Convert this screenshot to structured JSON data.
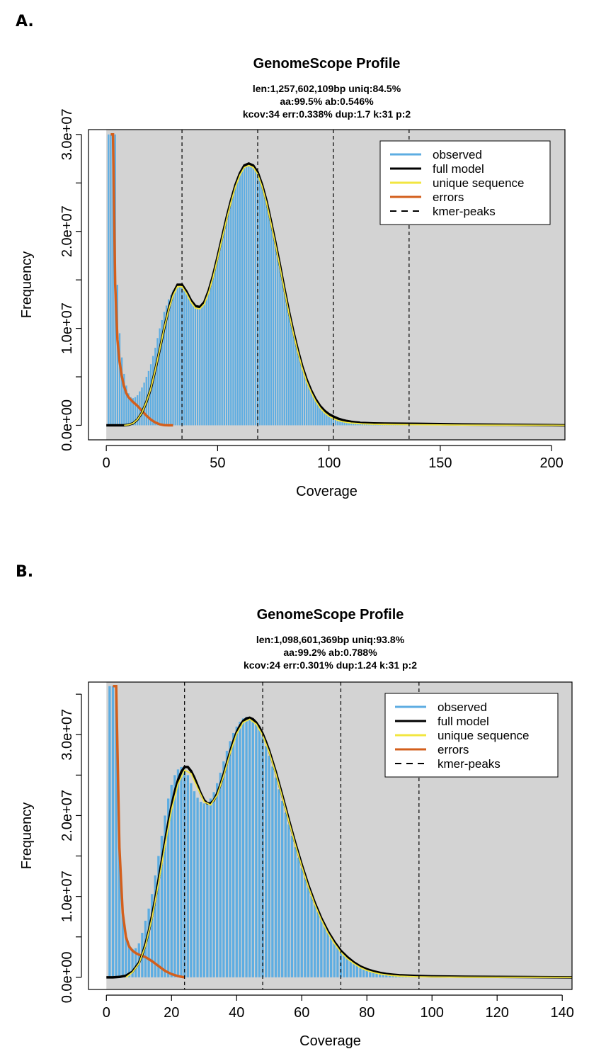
{
  "panels": {
    "a_label": "A.",
    "b_label": "B."
  },
  "chart_data": [
    {
      "type": "line",
      "title": "GenomeScope Profile",
      "subtitle_lines": [
        "len:1,257,602,109bp uniq:84.5%",
        "aa:99.5% ab:0.546%",
        "kcov:34 err:0.338%  dup:1.7  k:31 p:2"
      ],
      "xlabel": "Coverage",
      "ylabel": "Frequency",
      "xlim": [
        -8,
        206
      ],
      "ylim": [
        -1500000,
        30500000
      ],
      "xticks": [
        0,
        50,
        100,
        150,
        200
      ],
      "xtick_labels": [
        "0",
        "50",
        "100",
        "150",
        "200"
      ],
      "yticks": [
        0,
        5000000,
        10000000,
        15000000,
        20000000,
        25000000,
        30000000
      ],
      "ytick_labels": [
        "0.0e+00",
        "",
        "1.0e+07",
        "",
        "2.0e+07",
        "",
        "3.0e+07"
      ],
      "kmer_peaks": [
        34,
        68,
        102,
        136
      ],
      "observed": {
        "x": [
          1,
          2,
          3,
          4,
          5,
          6,
          7,
          8,
          9,
          10,
          11,
          12,
          13,
          14,
          15,
          16,
          17,
          18,
          19,
          20,
          22,
          24,
          26,
          28,
          30,
          32,
          34,
          36,
          38,
          40,
          42,
          44,
          46,
          48,
          50,
          52,
          54,
          56,
          58,
          60,
          62,
          64,
          66,
          68,
          70,
          72,
          74,
          76,
          78,
          80,
          82,
          84,
          86,
          88,
          90,
          92,
          94,
          96,
          98,
          100,
          102,
          104,
          106,
          108,
          110,
          112,
          114,
          116,
          118,
          120,
          125,
          130,
          140,
          150,
          160,
          180,
          200
        ],
        "values": [
          30000000,
          30000000,
          30000000,
          30000000,
          14500000,
          9500000,
          7000000,
          5300000,
          4100000,
          3300000,
          2900000,
          2800000,
          2900000,
          3100000,
          3500000,
          3900000,
          4400000,
          5000000,
          5600000,
          6300000,
          8000000,
          10000000,
          11700000,
          13000000,
          13900000,
          14300000,
          14200000,
          13600000,
          12800000,
          12300000,
          12200000,
          12800000,
          14000000,
          15600000,
          17500000,
          19500000,
          21400000,
          23200000,
          24800000,
          26000000,
          26800000,
          27000000,
          26800000,
          26000000,
          24700000,
          23000000,
          21000000,
          18800000,
          16500000,
          14100000,
          11800000,
          9700000,
          7800000,
          6100000,
          4700000,
          3600000,
          2700000,
          2000000,
          1500000,
          1150000,
          900000,
          700000,
          550000,
          430000,
          350000,
          300000,
          260000,
          230000,
          210000,
          200000,
          180000,
          170000,
          150000,
          120000,
          90000,
          50000,
          20000
        ]
      },
      "full_model": {
        "x": [
          0,
          2,
          4,
          6,
          8,
          10,
          12,
          14,
          16,
          18,
          20,
          22,
          24,
          26,
          28,
          30,
          32,
          34,
          36,
          38,
          40,
          42,
          44,
          46,
          48,
          50,
          52,
          54,
          56,
          58,
          60,
          62,
          64,
          66,
          68,
          70,
          72,
          74,
          76,
          78,
          80,
          82,
          84,
          86,
          88,
          90,
          92,
          94,
          96,
          98,
          100,
          102,
          104,
          106,
          108,
          110,
          112,
          114,
          116,
          118,
          120,
          125,
          130,
          140,
          150,
          160,
          180,
          200,
          206
        ],
        "values": [
          0,
          0,
          0,
          0,
          0,
          50000,
          200000,
          600000,
          1300000,
          2400000,
          3800000,
          5700000,
          7800000,
          10000000,
          12000000,
          13600000,
          14500000,
          14500000,
          13800000,
          12900000,
          12300000,
          12200000,
          12700000,
          13900000,
          15500000,
          17400000,
          19400000,
          21400000,
          23200000,
          24800000,
          26000000,
          26800000,
          27000000,
          26800000,
          26100000,
          24800000,
          23100000,
          21000000,
          18800000,
          16500000,
          14100000,
          11800000,
          9700000,
          7800000,
          6100000,
          4700000,
          3600000,
          2700000,
          2000000,
          1500000,
          1150000,
          900000,
          700000,
          550000,
          440000,
          360000,
          310000,
          270000,
          240000,
          220000,
          200000,
          180000,
          170000,
          150000,
          120000,
          90000,
          50000,
          20000,
          0
        ]
      },
      "unique_sequence": {
        "x": [
          8,
          10,
          12,
          14,
          16,
          18,
          20,
          22,
          24,
          26,
          28,
          30,
          32,
          34,
          36,
          38,
          40,
          42,
          44,
          46,
          48,
          50,
          52,
          54,
          56,
          58,
          60,
          62,
          64,
          66,
          68,
          70,
          72,
          74,
          76,
          78,
          80,
          82,
          84,
          86,
          88,
          90,
          92,
          94,
          96,
          98,
          100,
          102,
          104,
          106,
          108,
          110,
          115,
          120,
          125,
          130,
          140,
          150,
          160,
          180,
          200,
          206
        ],
        "values": [
          0,
          50000,
          200000,
          600000,
          1300000,
          2400000,
          3800000,
          5700000,
          7800000,
          10000000,
          11900000,
          13400000,
          14300000,
          14300000,
          13600000,
          12700000,
          12100000,
          12000000,
          12500000,
          13700000,
          15300000,
          17200000,
          19200000,
          21200000,
          23000000,
          24600000,
          25800000,
          26600000,
          26800000,
          26600000,
          25900000,
          24600000,
          22900000,
          20800000,
          18600000,
          16300000,
          13900000,
          11600000,
          9500000,
          7600000,
          5900000,
          4500000,
          3400000,
          2500000,
          1800000,
          1300000,
          950000,
          700000,
          500000,
          380000,
          290000,
          230000,
          150000,
          110000,
          90000,
          80000,
          60000,
          40000,
          30000,
          15000,
          5000,
          0
        ]
      },
      "errors": {
        "x": [
          2,
          3,
          4,
          5,
          6,
          7,
          8,
          9,
          10,
          12,
          14,
          16,
          18,
          20,
          22,
          24,
          26,
          28,
          30
        ],
        "values": [
          30000000,
          30000000,
          14500000,
          8800000,
          6500000,
          5000000,
          4000000,
          3300000,
          2900000,
          2400000,
          2000000,
          1500000,
          1000000,
          600000,
          300000,
          100000,
          20000,
          0,
          0
        ]
      },
      "legend": [
        "observed",
        "full model",
        "unique sequence",
        "errors",
        "kmer-peaks"
      ],
      "colors": {
        "observed": "#5dade2",
        "full_model": "#000000",
        "unique_sequence": "#f2e640",
        "errors": "#d35f1c",
        "kmer_peaks": "#000000",
        "background": "#d3d3d3"
      }
    },
    {
      "type": "line",
      "title": "GenomeScope Profile",
      "subtitle_lines": [
        "len:1,098,601,369bp uniq:93.8%",
        "aa:99.2% ab:0.788%",
        "kcov:24 err:0.301%  dup:1.24  k:31 p:2"
      ],
      "xlabel": "Coverage",
      "ylabel": "Frequency",
      "xlim": [
        -5.5,
        143
      ],
      "ylim": [
        -1500000,
        36500000
      ],
      "xticks": [
        0,
        20,
        40,
        60,
        80,
        100,
        120,
        140
      ],
      "xtick_labels": [
        "0",
        "20",
        "40",
        "60",
        "80",
        "100",
        "120",
        "140"
      ],
      "yticks": [
        0,
        5000000,
        10000000,
        15000000,
        20000000,
        25000000,
        30000000,
        35000000
      ],
      "ytick_labels": [
        "0.0e+00",
        "",
        "1.0e+07",
        "",
        "2.0e+07",
        "",
        "3.0e+07",
        ""
      ],
      "kmer_peaks": [
        24,
        48,
        72,
        96
      ],
      "observed": {
        "x": [
          1,
          2,
          3,
          4,
          5,
          6,
          7,
          8,
          9,
          10,
          11,
          12,
          13,
          14,
          15,
          16,
          17,
          18,
          19,
          20,
          21,
          22,
          23,
          24,
          25,
          26,
          27,
          28,
          29,
          30,
          31,
          32,
          33,
          34,
          35,
          36,
          37,
          38,
          39,
          40,
          41,
          42,
          43,
          44,
          45,
          46,
          47,
          48,
          49,
          50,
          52,
          54,
          56,
          58,
          60,
          62,
          64,
          66,
          68,
          70,
          72,
          74,
          76,
          78,
          80,
          82,
          84,
          86,
          88,
          90,
          95,
          100,
          110,
          120,
          130,
          140
        ],
        "values": [
          36000000,
          36000000,
          36000000,
          16000000,
          8000000,
          5000000,
          4000000,
          3500000,
          3600000,
          4200000,
          5500000,
          7000000,
          8500000,
          10300000,
          12600000,
          15000000,
          17500000,
          20000000,
          22100000,
          23800000,
          25000000,
          25700000,
          26000000,
          25700000,
          25000000,
          24000000,
          23000000,
          22200000,
          21700000,
          21500000,
          21600000,
          22100000,
          22900000,
          24000000,
          25300000,
          26700000,
          28000000,
          29200000,
          30200000,
          31000000,
          31600000,
          32000000,
          32200000,
          32100000,
          31800000,
          31300000,
          30600000,
          29700000,
          28600000,
          27400000,
          24700000,
          21800000,
          18900000,
          16100000,
          13500000,
          11100000,
          9000000,
          7200000,
          5700000,
          4400000,
          3300000,
          2500000,
          1850000,
          1350000,
          1000000,
          750000,
          560000,
          420000,
          330000,
          260000,
          170000,
          120000,
          80000,
          50000,
          30000,
          15000
        ]
      },
      "full_model": {
        "x": [
          0,
          2,
          4,
          6,
          8,
          10,
          11,
          12,
          13,
          14,
          15,
          16,
          17,
          18,
          19,
          20,
          21,
          22,
          23,
          24,
          25,
          26,
          27,
          28,
          29,
          30,
          31,
          32,
          33,
          34,
          35,
          36,
          37,
          38,
          39,
          40,
          41,
          42,
          43,
          44,
          45,
          46,
          47,
          48,
          49,
          50,
          52,
          54,
          56,
          58,
          60,
          62,
          64,
          66,
          68,
          70,
          72,
          74,
          76,
          78,
          80,
          82,
          84,
          86,
          88,
          90,
          95,
          100,
          110,
          120,
          130,
          143
        ],
        "values": [
          0,
          0,
          50000,
          200000,
          700000,
          1800000,
          2800000,
          4100000,
          5700000,
          7600000,
          9700000,
          12000000,
          14400000,
          16800000,
          19100000,
          21200000,
          23000000,
          24400000,
          25400000,
          26000000,
          26000000,
          25500000,
          24700000,
          23700000,
          22700000,
          21900000,
          21500000,
          21500000,
          21900000,
          22700000,
          23800000,
          25100000,
          26500000,
          27900000,
          29200000,
          30300000,
          31100000,
          31700000,
          32000000,
          32100000,
          31900000,
          31500000,
          30900000,
          30100000,
          29100000,
          28000000,
          25400000,
          22500000,
          19500000,
          16600000,
          13900000,
          11400000,
          9200000,
          7300000,
          5700000,
          4400000,
          3300000,
          2500000,
          1850000,
          1350000,
          1000000,
          750000,
          560000,
          420000,
          330000,
          260000,
          170000,
          120000,
          80000,
          50000,
          30000,
          0
        ]
      },
      "unique_sequence": {
        "x": [
          6,
          8,
          10,
          12,
          14,
          16,
          18,
          20,
          22,
          24,
          26,
          28,
          30,
          32,
          34,
          36,
          38,
          40,
          42,
          44,
          46,
          48,
          50,
          52,
          54,
          56,
          58,
          60,
          62,
          64,
          66,
          68,
          70,
          72,
          74,
          76,
          78,
          80,
          82,
          84,
          86,
          88,
          90,
          95,
          100,
          110,
          120,
          130,
          143
        ],
        "values": [
          0,
          600000,
          1700000,
          3900000,
          7300000,
          11600000,
          16300000,
          20700000,
          23900000,
          25600000,
          25200000,
          23400000,
          21700000,
          21300000,
          22500000,
          24900000,
          27700000,
          30100000,
          31500000,
          31900000,
          31300000,
          29900000,
          27800000,
          25200000,
          22300000,
          19300000,
          16400000,
          13700000,
          11200000,
          9000000,
          7100000,
          5500000,
          4200000,
          3100000,
          2300000,
          1700000,
          1200000,
          850000,
          600000,
          420000,
          300000,
          210000,
          150000,
          80000,
          40000,
          15000,
          5000,
          2000,
          0
        ]
      },
      "errors": {
        "x": [
          2,
          3,
          4,
          5,
          6,
          7,
          8,
          9,
          10,
          12,
          14,
          16,
          18,
          20,
          22,
          24
        ],
        "values": [
          36000000,
          36000000,
          16000000,
          8000000,
          5000000,
          3800000,
          3300000,
          3000000,
          2800000,
          2500000,
          2000000,
          1400000,
          800000,
          400000,
          150000,
          0
        ]
      },
      "legend": [
        "observed",
        "full model",
        "unique sequence",
        "errors",
        "kmer-peaks"
      ],
      "colors": {
        "observed": "#5dade2",
        "full_model": "#000000",
        "unique_sequence": "#f2e640",
        "errors": "#d35f1c",
        "kmer_peaks": "#000000",
        "background": "#d3d3d3"
      }
    }
  ]
}
